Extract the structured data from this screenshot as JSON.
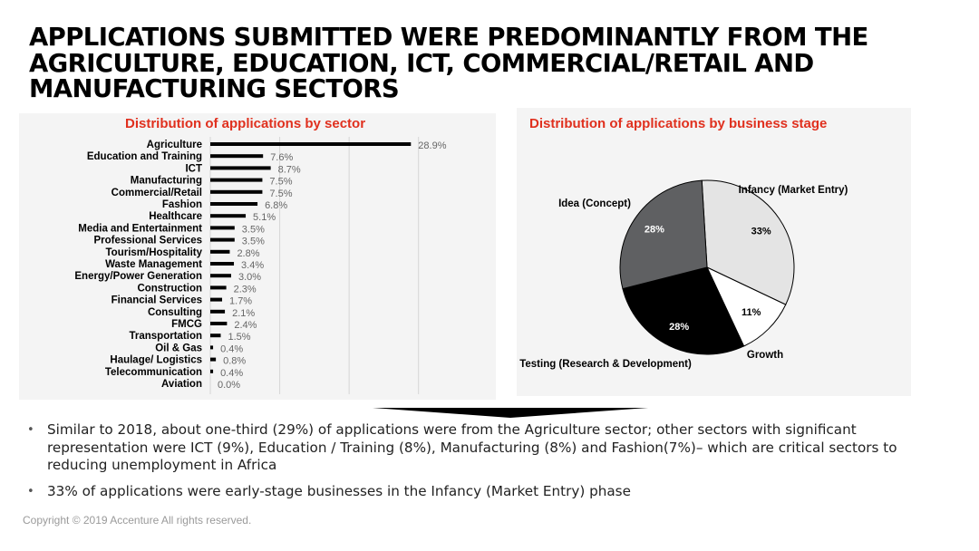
{
  "title_lines": [
    "APPLICATIONS SUBMITTED WERE PREDOMINANTLY FROM THE",
    "AGRICULTURE, EDUCATION, ICT, COMMERCIAL/RETAIL AND",
    "MANUFACTURING SECTORS"
  ],
  "colors": {
    "accent": "#e0301e",
    "bar": "#000000",
    "panel": "#f4f4f4"
  },
  "chart_data": [
    {
      "type": "bar",
      "orientation": "horizontal",
      "title": "Distribution of applications by sector",
      "categories": [
        "Agriculture",
        "Education and Training",
        "ICT",
        "Manufacturing",
        "Commercial/Retail",
        "Fashion",
        "Healthcare",
        "Media and Entertainment",
        "Professional Services",
        "Tourism/Hospitality",
        "Waste Management",
        "Energy/Power Generation",
        "Construction",
        "Financial Services",
        "Consulting",
        "FMCG",
        "Transportation",
        "Oil & Gas",
        "Haulage/ Logistics",
        "Telecommunication",
        "Aviation"
      ],
      "values": [
        28.9,
        7.6,
        8.7,
        7.5,
        7.5,
        6.8,
        5.1,
        3.5,
        3.5,
        2.8,
        3.4,
        3.0,
        2.3,
        1.7,
        2.1,
        2.4,
        1.5,
        0.4,
        0.8,
        0.4,
        0.0
      ],
      "labels": [
        "28.9%",
        "7.6%",
        "8.7%",
        "7.5%",
        "7.5%",
        "6.8%",
        "5.1%",
        "3.5%",
        "3.5%",
        "2.8%",
        "3.4%",
        "3.0%",
        "2.3%",
        "1.7%",
        "2.1%",
        "2.4%",
        "1.5%",
        "0.4%",
        "0.8%",
        "0.4%",
        "0.0%"
      ],
      "xlim": [
        0,
        35
      ],
      "grid": true
    },
    {
      "type": "pie",
      "title": "Distribution of applications by business stage",
      "slices": [
        {
          "name": "Infancy (Market Entry)",
          "value": 33,
          "label": "33%",
          "color": "#e4e4e4"
        },
        {
          "name": "Growth",
          "value": 11,
          "label": "11%",
          "color": "#ffffff"
        },
        {
          "name": "Testing (Research & Development)",
          "value": 28,
          "label": "28%",
          "color": "#000000"
        },
        {
          "name": "Idea (Concept)",
          "value": 28,
          "label": "28%",
          "color": "#5f6062"
        }
      ]
    }
  ],
  "bullets": [
    "Similar to 2018, about one-third (29%) of applications were from the Agriculture sector; other sectors with significant  representation were ICT (9%), Education / Training (8%), Manufacturing (8%) and Fashion(7%)– which are critical sectors to reducing unemployment in Africa",
    "33% of applications were early-stage businesses in the Infancy (Market Entry) phase"
  ],
  "copyright": "Copyright © 2019 Accenture  All rights reserved."
}
